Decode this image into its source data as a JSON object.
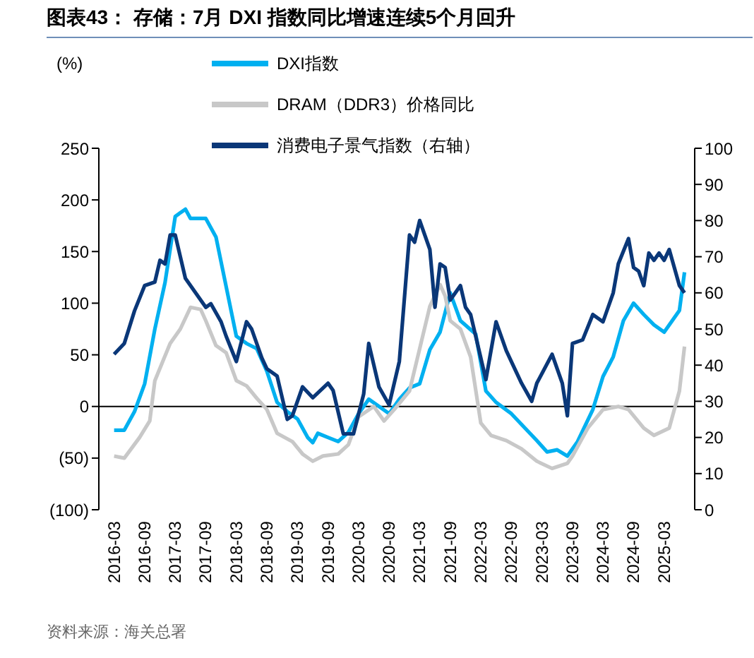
{
  "chart_data": {
    "type": "line",
    "title": "图表43：  存储：7月 DXI 指数同比增速连续5个月回升",
    "annotations": [
      "(%)",
      "资料来源：海关总署"
    ],
    "xlim": [
      "2015-12",
      "2025-09"
    ],
    "xticks": [
      "2016-03",
      "2016-09",
      "2017-03",
      "2017-09",
      "2018-03",
      "2018-09",
      "2019-03",
      "2019-09",
      "2020-03",
      "2020-09",
      "2021-03",
      "2021-09",
      "2022-03",
      "2022-09",
      "2023-03",
      "2023-09",
      "2024-03",
      "2024-09",
      "2025-03"
    ],
    "ylim": [
      -100,
      250
    ],
    "yticks": [
      {
        "value": -100,
        "label": "(100)"
      },
      {
        "value": -50,
        "label": "(50)"
      },
      0,
      50,
      100,
      150,
      200,
      250
    ],
    "y2lim": [
      0,
      100
    ],
    "y2ticks": [
      0,
      10,
      20,
      30,
      40,
      50,
      60,
      70,
      80,
      90,
      100
    ],
    "legend": "top",
    "ref_lines": [
      {
        "axis": "y",
        "value": 0,
        "color": "#000000"
      }
    ],
    "series": [
      {
        "name": "DXI指数",
        "color": "#00b0f0",
        "x": [
          "2016-03",
          "2016-05",
          "2016-07",
          "2016-09",
          "2016-11",
          "2017-01",
          "2017-03",
          "2017-05",
          "2017-06",
          "2017-09",
          "2017-11",
          "2018-01",
          "2018-03",
          "2018-05",
          "2018-07",
          "2018-09",
          "2018-11",
          "2019-01",
          "2019-03",
          "2019-05",
          "2019-06",
          "2019-07",
          "2019-09",
          "2019-11",
          "2020-01",
          "2020-03",
          "2020-05",
          "2020-07",
          "2020-09",
          "2020-11",
          "2021-01",
          "2021-03",
          "2021-05",
          "2021-07",
          "2021-09",
          "2021-11",
          "2022-02",
          "2022-04",
          "2022-06",
          "2022-09",
          "2023-02",
          "2023-04",
          "2023-06",
          "2023-08",
          "2023-10",
          "2024-01",
          "2024-03",
          "2024-05",
          "2024-07",
          "2024-09",
          "2024-11",
          "2025-01",
          "2025-03",
          "2025-06",
          "2025-07"
        ],
        "values": [
          -23,
          -23,
          -5,
          22,
          75,
          120,
          184,
          191,
          182,
          182,
          164,
          116,
          68,
          61,
          56,
          34,
          4,
          -5,
          -12,
          -30,
          -35,
          -26,
          -30,
          -34,
          -25,
          -7,
          7,
          0,
          -7,
          7,
          18,
          22,
          55,
          72,
          110,
          83,
          70,
          15,
          4,
          -7,
          -33,
          -44,
          -42,
          -48,
          -34,
          -3,
          29,
          48,
          83,
          100,
          89,
          79,
          72,
          93,
          130
        ]
      },
      {
        "name": "DRAM（DDR3）价格同比",
        "color": "#c8c8c8",
        "x": [
          "2016-03",
          "2016-05",
          "2016-08",
          "2016-10",
          "2016-11",
          "2017-02",
          "2017-04",
          "2017-06",
          "2017-08",
          "2017-09",
          "2017-11",
          "2018-01",
          "2018-03",
          "2018-05",
          "2018-07",
          "2018-09",
          "2018-11",
          "2019-02",
          "2019-04",
          "2019-06",
          "2019-08",
          "2019-11",
          "2020-01",
          "2020-03",
          "2020-06",
          "2020-08",
          "2020-10",
          "2021-01",
          "2021-03",
          "2021-05",
          "2021-07",
          "2021-08",
          "2021-09",
          "2021-11",
          "2022-01",
          "2022-03",
          "2022-05",
          "2022-08",
          "2022-11",
          "2023-02",
          "2023-05",
          "2023-08",
          "2023-09",
          "2023-12",
          "2024-03",
          "2024-06",
          "2024-08",
          "2024-11",
          "2025-01",
          "2025-04",
          "2025-06",
          "2025-07"
        ],
        "values": [
          -48,
          -50,
          -30,
          -14,
          25,
          61,
          75,
          96,
          94,
          83,
          59,
          52,
          25,
          20,
          8,
          -3,
          -26,
          -34,
          -46,
          -53,
          -48,
          -46,
          -37,
          -10,
          0,
          -14,
          -3,
          15,
          56,
          97,
          118,
          107,
          83,
          75,
          48,
          -16,
          -28,
          -33,
          -41,
          -53,
          -60,
          -55,
          -48,
          -21,
          -3,
          0,
          -3,
          -21,
          -28,
          -21,
          15,
          58
        ]
      },
      {
        "name": "消费电子景气指数（右轴）",
        "color": "#0a3778",
        "axis": "y2",
        "x": [
          "2016-03",
          "2016-05",
          "2016-07",
          "2016-09",
          "2016-11",
          "2016-12",
          "2017-01",
          "2017-02",
          "2017-03",
          "2017-05",
          "2017-07",
          "2017-09",
          "2017-10",
          "2017-12",
          "2018-01",
          "2018-03",
          "2018-05",
          "2018-06",
          "2018-08",
          "2018-09",
          "2018-11",
          "2019-01",
          "2019-02",
          "2019-04",
          "2019-06",
          "2019-09",
          "2019-10",
          "2019-12",
          "2020-02",
          "2020-04",
          "2020-05",
          "2020-07",
          "2020-09",
          "2020-11",
          "2021-01",
          "2021-02",
          "2021-03",
          "2021-05",
          "2021-06",
          "2021-07",
          "2021-08",
          "2021-09",
          "2021-11",
          "2021-12",
          "2022-01",
          "2022-03",
          "2022-04",
          "2022-06",
          "2022-08",
          "2022-09",
          "2022-11",
          "2023-01",
          "2023-02",
          "2023-05",
          "2023-07",
          "2023-08",
          "2023-09",
          "2023-11",
          "2024-01",
          "2024-03",
          "2024-05",
          "2024-06",
          "2024-08",
          "2024-09",
          "2024-10",
          "2024-11",
          "2024-12",
          "2025-01",
          "2025-02",
          "2025-03",
          "2025-04",
          "2025-05",
          "2025-06",
          "2025-07"
        ],
        "values": [
          43,
          46,
          55,
          62,
          63,
          69,
          68,
          76,
          76,
          64,
          60,
          56,
          57,
          52,
          48,
          41,
          52,
          50,
          42,
          39,
          37,
          25,
          26,
          34,
          31,
          35,
          33,
          21,
          21,
          32,
          46,
          34,
          29,
          41,
          76,
          74,
          80,
          72,
          56,
          68,
          67,
          58,
          62,
          56,
          54,
          42,
          36,
          52,
          44,
          41,
          35,
          30,
          35,
          43,
          35,
          26,
          46,
          47,
          54,
          52,
          60,
          68,
          75,
          67,
          66,
          62,
          71,
          69,
          71,
          69,
          72,
          67,
          62,
          60
        ]
      }
    ]
  }
}
